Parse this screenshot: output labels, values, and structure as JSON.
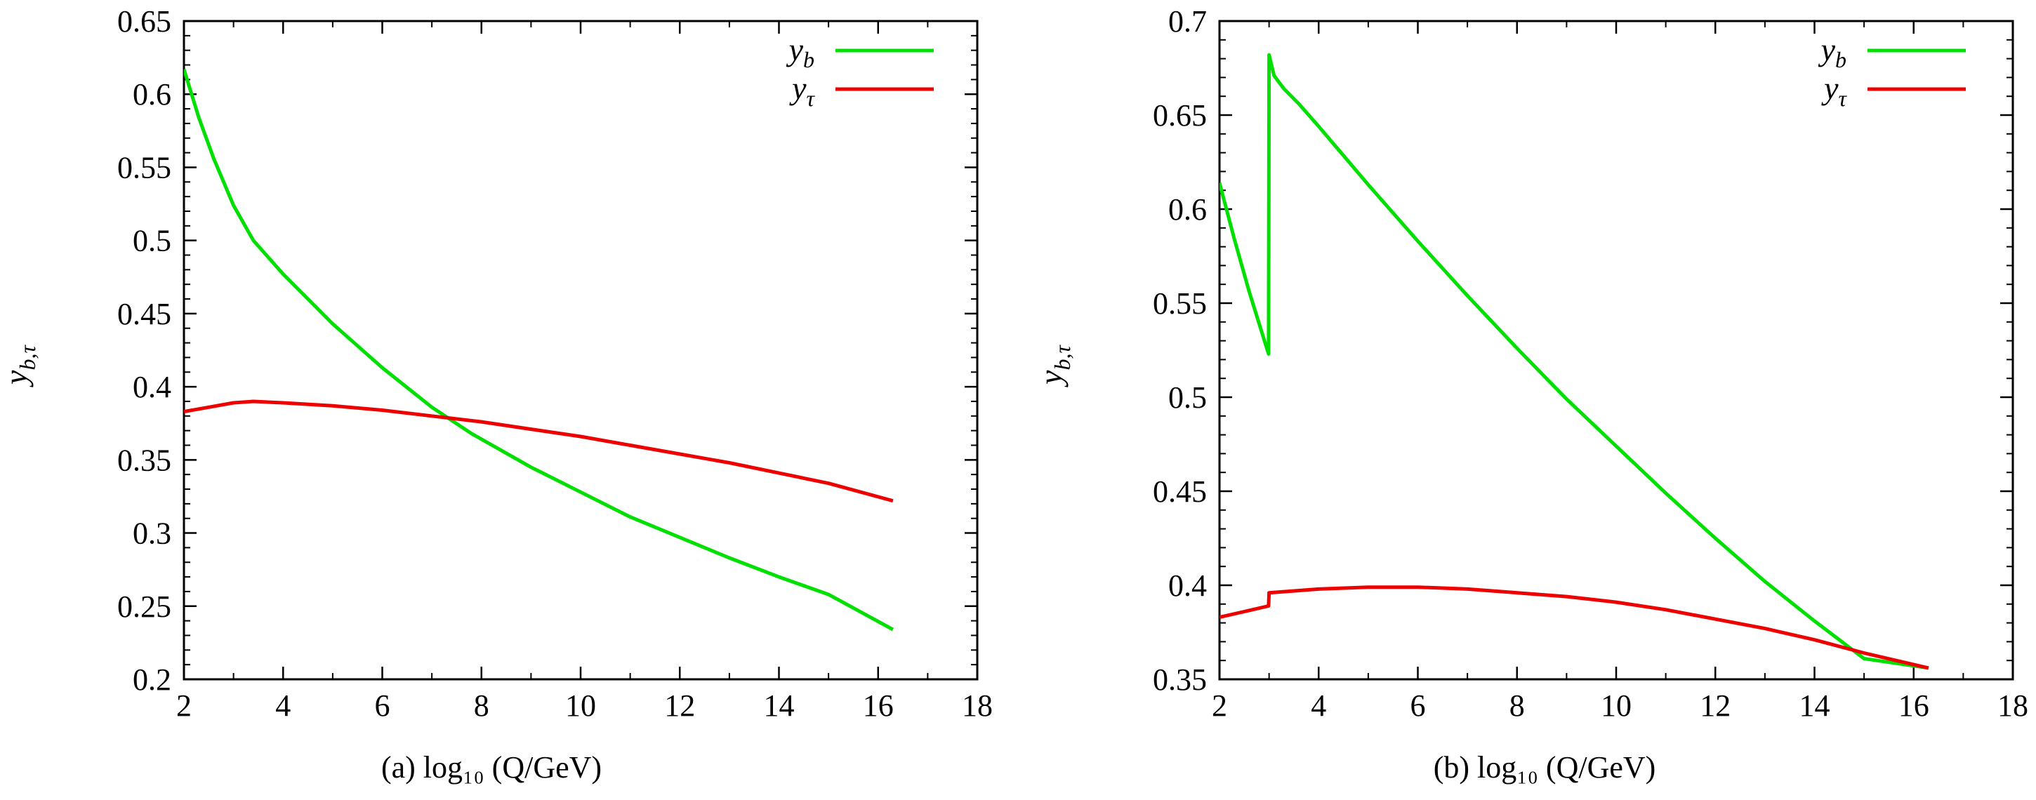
{
  "chart_data": [
    {
      "type": "line",
      "caption": "(a)  log₁₀ (Q/GeV)",
      "xlabel": "(a)  log₁₀ (Q/GeV)",
      "ylabel": "y_{b,τ}",
      "ylabel_parts": {
        "base": "y",
        "sub": "b,τ"
      },
      "xlim": [
        2,
        18
      ],
      "ylim": [
        0.2,
        0.65
      ],
      "xticks": [
        "2",
        "4",
        "6",
        "8",
        "10",
        "12",
        "14",
        "16",
        "18"
      ],
      "yticks": [
        "0.2",
        "0.25",
        "0.3",
        "0.35",
        "0.4",
        "0.45",
        "0.5",
        "0.55",
        "0.6",
        "0.65"
      ],
      "legend_position": "top-right",
      "series": [
        {
          "name": "y_b",
          "legend": {
            "base": "y",
            "sub": "b"
          },
          "color": "#00e000",
          "x": [
            2.0,
            2.3,
            2.6,
            3.0,
            3.4,
            4.0,
            5.0,
            6.0,
            7.0,
            7.8,
            9.0,
            10.0,
            11.0,
            12.0,
            13.0,
            14.0,
            15.0,
            16.3
          ],
          "y": [
            0.617,
            0.584,
            0.556,
            0.524,
            0.5,
            0.477,
            0.443,
            0.413,
            0.386,
            0.368,
            0.345,
            0.328,
            0.311,
            0.297,
            0.283,
            0.27,
            0.258,
            0.234
          ]
        },
        {
          "name": "y_τ",
          "legend": {
            "base": "y",
            "sub": "τ"
          },
          "color": "#ee0000",
          "x": [
            2.0,
            2.5,
            3.0,
            3.4,
            4.0,
            5.0,
            6.0,
            7.0,
            8.0,
            9.0,
            10.0,
            11.0,
            12.0,
            13.0,
            14.0,
            15.0,
            16.3
          ],
          "y": [
            0.383,
            0.386,
            0.389,
            0.39,
            0.389,
            0.387,
            0.384,
            0.38,
            0.376,
            0.371,
            0.366,
            0.36,
            0.354,
            0.348,
            0.341,
            0.334,
            0.322
          ]
        }
      ]
    },
    {
      "type": "line",
      "caption": "(b)  log₁₀ (Q/GeV)",
      "xlabel": "(b)  log₁₀ (Q/GeV)",
      "ylabel": "y_{b,τ}",
      "ylabel_parts": {
        "base": "y",
        "sub": "b,τ"
      },
      "xlim": [
        2,
        18
      ],
      "ylim": [
        0.35,
        0.7
      ],
      "xticks": [
        "2",
        "4",
        "6",
        "8",
        "10",
        "12",
        "14",
        "16",
        "18"
      ],
      "yticks": [
        "0.35",
        "0.4",
        "0.45",
        "0.5",
        "0.55",
        "0.6",
        "0.65",
        "0.7"
      ],
      "legend_position": "top-right",
      "series": [
        {
          "name": "y_b",
          "legend": {
            "base": "y",
            "sub": "b"
          },
          "color": "#00e000",
          "x": [
            2.0,
            2.3,
            2.6,
            2.99,
            3.0,
            3.1,
            3.3,
            3.6,
            4.0,
            5.0,
            6.0,
            7.0,
            8.0,
            9.0,
            10.0,
            11.0,
            12.0,
            13.0,
            14.0,
            15.0,
            16.3
          ],
          "y": [
            0.614,
            0.584,
            0.556,
            0.523,
            0.682,
            0.671,
            0.664,
            0.656,
            0.644,
            0.613,
            0.583,
            0.554,
            0.526,
            0.499,
            0.474,
            0.449,
            0.425,
            0.402,
            0.381,
            0.361,
            0.356
          ]
        },
        {
          "name": "y_τ",
          "legend": {
            "base": "y",
            "sub": "τ"
          },
          "color": "#ee0000",
          "x": [
            2.0,
            2.5,
            2.99,
            3.0,
            4.0,
            5.0,
            6.0,
            7.0,
            8.0,
            9.0,
            10.0,
            11.0,
            12.0,
            13.0,
            14.0,
            15.0,
            16.3
          ],
          "y": [
            0.383,
            0.386,
            0.389,
            0.396,
            0.398,
            0.399,
            0.399,
            0.398,
            0.396,
            0.394,
            0.391,
            0.387,
            0.382,
            0.377,
            0.371,
            0.364,
            0.356
          ]
        }
      ]
    }
  ]
}
